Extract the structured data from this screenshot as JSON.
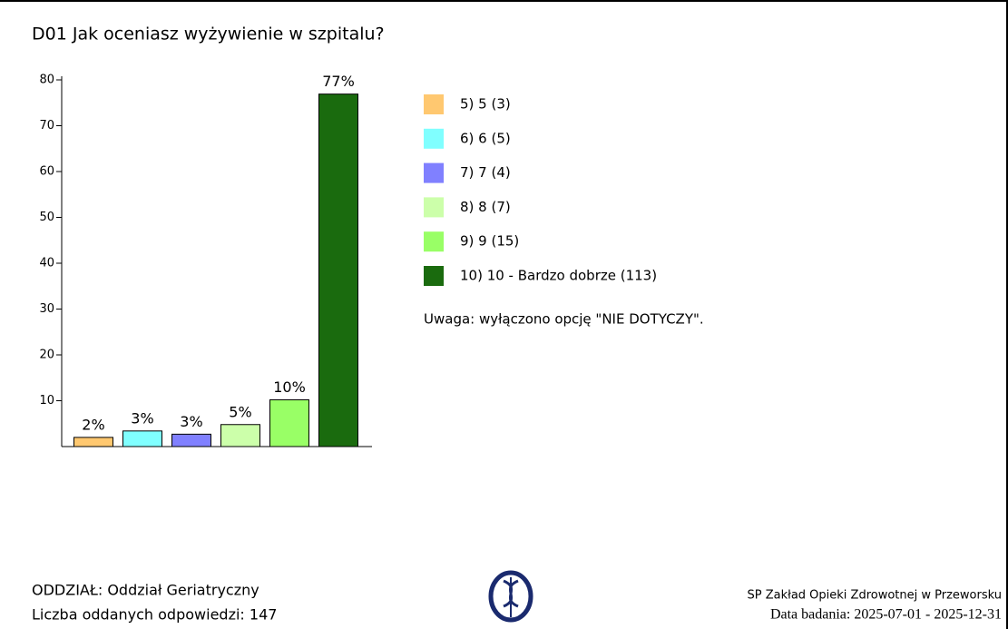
{
  "chart_data": {
    "type": "bar",
    "title": "D01 Jak oceniasz wyżywienie w szpitalu?",
    "categories": [
      "5) 5 (3)",
      "6) 6 (5)",
      "7) 7 (4)",
      "8) 8 (7)",
      "9) 9 (15)",
      "10) 10 - Bardzo dobrze (113)"
    ],
    "values": [
      2.0,
      3.4,
      2.7,
      4.8,
      10.2,
      76.9
    ],
    "value_labels": [
      "2%",
      "3%",
      "3%",
      "5%",
      "10%",
      "77%"
    ],
    "colors": [
      "#ffc870",
      "#80ffff",
      "#8080ff",
      "#ccffaa",
      "#99ff66",
      "#1a6b0e"
    ],
    "ylim": [
      0,
      80
    ],
    "yticks": [
      10,
      20,
      30,
      40,
      50,
      60,
      70,
      80
    ],
    "note": "Uwaga: wyłączono opcję \"NIE DOTYCZY\"."
  },
  "footer": {
    "department": "ODDZIAŁ: Oddział Geriatryczny",
    "responses": "Liczba oddanych odpowiedzi: 147",
    "institution": "SP Zakład Opieki Zdrowotnej w Przeworsku",
    "date": "Data badania: 2025-07-01 - 2025-12-31"
  }
}
